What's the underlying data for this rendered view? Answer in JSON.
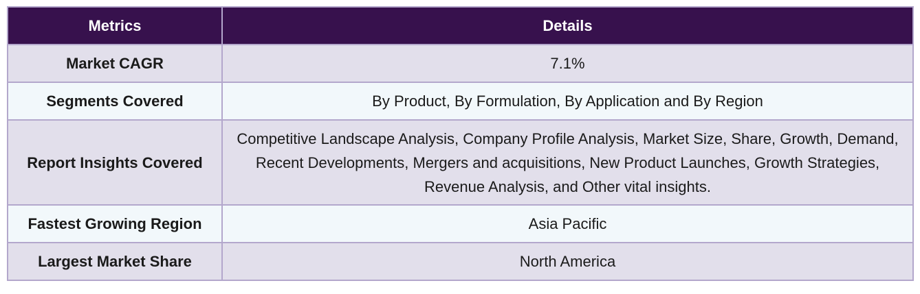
{
  "table": {
    "headers": [
      "Metrics",
      "Details"
    ],
    "rows": [
      {
        "metric": "Market CAGR",
        "detail": "7.1%"
      },
      {
        "metric": "Segments Covered",
        "detail": "By Product, By Formulation, By Application and By Region"
      },
      {
        "metric": "Report Insights Covered",
        "detail": "Competitive Landscape Analysis, Company Profile Analysis, Market Size, Share, Growth, Demand, Recent Developments, Mergers and acquisitions, New Product Launches, Growth Strategies, Revenue Analysis, and Other vital insights."
      },
      {
        "metric": "Fastest Growing Region",
        "detail": "Asia Pacific"
      },
      {
        "metric": "Largest Market Share",
        "detail": "North America"
      }
    ]
  },
  "colors": {
    "header_bg": "#37114d",
    "header_text": "#ffffff",
    "row_odd_bg": "#e2dfeb",
    "row_even_bg": "#f2f8fb",
    "border": "#b3a7cc"
  }
}
